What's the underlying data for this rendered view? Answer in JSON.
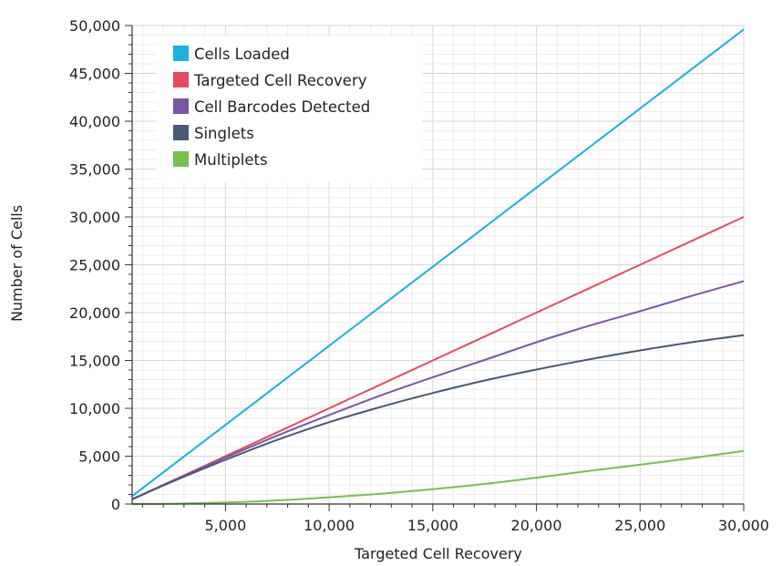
{
  "chart_data": {
    "type": "line",
    "title": "",
    "xlabel": "Targeted Cell Recovery",
    "ylabel": "Number of Cells",
    "xlim": [
      500,
      30000
    ],
    "ylim": [
      0,
      50000
    ],
    "xticks": [
      5000,
      10000,
      15000,
      20000,
      25000,
      30000
    ],
    "xtick_labels": [
      "5,000",
      "10,000",
      "15,000",
      "20,000",
      "25,000",
      "30,000"
    ],
    "yticks": [
      0,
      5000,
      10000,
      15000,
      20000,
      25000,
      30000,
      35000,
      40000,
      45000,
      50000
    ],
    "ytick_labels": [
      "0",
      "5,000",
      "10,000",
      "15,000",
      "20,000",
      "25,000",
      "30,000",
      "35,000",
      "40,000",
      "45,000",
      "50,000"
    ],
    "grid": true,
    "legend_position": "top-left",
    "x": [
      500,
      2500,
      5000,
      7500,
      10000,
      12500,
      15000,
      17500,
      20000,
      22500,
      25000,
      27500,
      30000
    ],
    "series": [
      {
        "name": "Cells Loaded",
        "color": "#19b1e0",
        "values": [
          826,
          4132,
          8264,
          12397,
          16529,
          20661,
          24793,
          28926,
          33058,
          37190,
          41322,
          45455,
          49587
        ]
      },
      {
        "name": "Targeted Cell Recovery",
        "color": "#e24c5c",
        "values": [
          500,
          2500,
          5000,
          7500,
          10000,
          12500,
          15000,
          17500,
          20000,
          22500,
          25000,
          27500,
          30000
        ]
      },
      {
        "name": "Cell Barcodes Detected",
        "color": "#7a55a8",
        "values": [
          500,
          2460,
          4850,
          7150,
          9300,
          11350,
          13250,
          15050,
          16900,
          18600,
          20150,
          21750,
          23300
        ]
      },
      {
        "name": "Singlets",
        "color": "#485a72",
        "values": [
          500,
          2400,
          4620,
          6700,
          8550,
          10150,
          11600,
          12900,
          14050,
          15100,
          16050,
          16900,
          17650
        ]
      },
      {
        "name": "Multiplets",
        "color": "#77c04f",
        "values": [
          0,
          40,
          160,
          380,
          700,
          1080,
          1550,
          2100,
          2750,
          3450,
          4100,
          4800,
          5550
        ]
      }
    ]
  }
}
